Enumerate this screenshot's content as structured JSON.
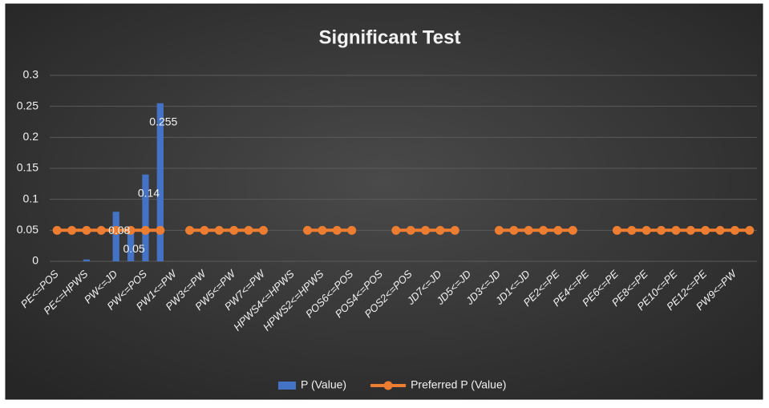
{
  "chart_data": {
    "type": "bar_line",
    "title": "Significant Test",
    "categories": [
      "PE<=POS",
      null,
      "PE<=HPWS",
      null,
      "PW<=JD",
      null,
      "PW<=POS",
      null,
      "PW1<=PW",
      null,
      "PW3<=PW",
      null,
      "PW5<=PW",
      null,
      "PW7<=PW",
      null,
      "HPWS4<=HPWS",
      null,
      "HPWS2<=HPWS",
      null,
      "POS6<=POS",
      null,
      "POS4<=POS",
      null,
      "POS2<=POS",
      null,
      "JD7<=JD",
      null,
      "JD5<=JD",
      null,
      "JD3<=JD",
      null,
      "JD1<=JD",
      null,
      "PE2<=PE",
      null,
      "PE4<=PE",
      null,
      "PE6<=PE",
      null,
      "PE8<=PE",
      null,
      "PE10<=PE",
      null,
      "PE12<=PE",
      null,
      "PW9<=PW",
      null
    ],
    "series": [
      {
        "name": "P (Value)",
        "type": "bar",
        "color": "#4472c4",
        "values": [
          null,
          null,
          0.003,
          null,
          0.08,
          0.05,
          0.14,
          0.255,
          null,
          null,
          null,
          null,
          null,
          null,
          null,
          null,
          null,
          null,
          null,
          null,
          null,
          null,
          null,
          null,
          null,
          null,
          null,
          null,
          null,
          null,
          null,
          null,
          null,
          null,
          null,
          null,
          null,
          null,
          null,
          null,
          null,
          null,
          null,
          null,
          null,
          null,
          null,
          null
        ],
        "value_labels": [
          null,
          null,
          null,
          null,
          "0.08",
          "0.05",
          "0.14",
          "0.255",
          null,
          null,
          null,
          null,
          null,
          null,
          null,
          null,
          null,
          null,
          null,
          null,
          null,
          null,
          null,
          null,
          null,
          null,
          null,
          null,
          null,
          null,
          null,
          null,
          null,
          null,
          null,
          null,
          null,
          null,
          null,
          null,
          null,
          null,
          null,
          null,
          null,
          null,
          null,
          null
        ]
      },
      {
        "name": "Preferred P (Value)",
        "type": "line",
        "color": "#ed7d31",
        "values": [
          0.05,
          0.05,
          0.05,
          0.05,
          0.05,
          0.05,
          0.05,
          0.05,
          null,
          0.05,
          0.05,
          0.05,
          0.05,
          0.05,
          0.05,
          null,
          null,
          0.05,
          0.05,
          0.05,
          0.05,
          null,
          null,
          0.05,
          0.05,
          0.05,
          0.05,
          0.05,
          null,
          null,
          0.05,
          0.05,
          0.05,
          0.05,
          0.05,
          0.05,
          null,
          null,
          0.05,
          0.05,
          0.05,
          0.05,
          0.05,
          0.05,
          0.05,
          0.05,
          0.05,
          0.05
        ]
      }
    ],
    "ylim": [
      0,
      0.3
    ],
    "yticks": [
      0,
      0.05,
      0.1,
      0.15,
      0.2,
      0.25,
      0.3
    ],
    "grid": true,
    "legend": "bottom"
  }
}
